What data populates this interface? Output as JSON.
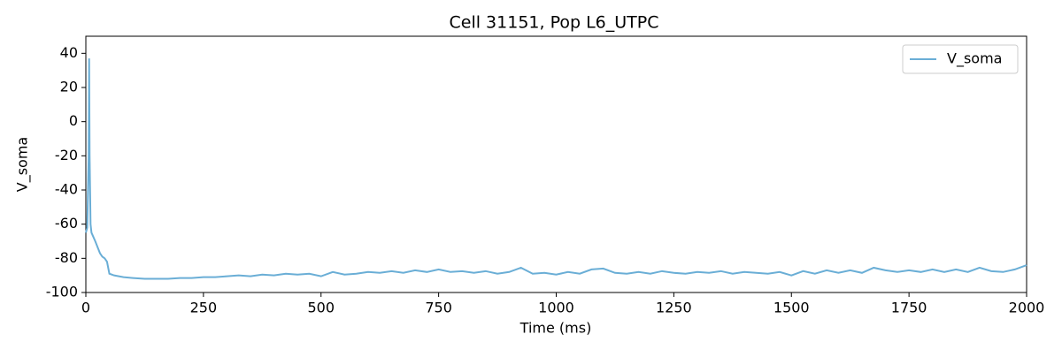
{
  "chart_data": {
    "type": "line",
    "title": "Cell 31151, Pop L6_UTPC",
    "x_label": "Time (ms)",
    "y_label": "V_soma",
    "x": [
      0,
      3,
      6,
      7,
      8,
      10,
      12,
      20,
      30,
      35,
      40,
      45,
      50,
      60,
      80,
      100,
      125,
      150,
      175,
      200,
      225,
      250,
      275,
      300,
      325,
      350,
      375,
      400,
      425,
      450,
      475,
      500,
      525,
      550,
      575,
      600,
      625,
      650,
      675,
      700,
      725,
      750,
      775,
      800,
      825,
      850,
      875,
      900,
      925,
      950,
      975,
      1000,
      1025,
      1050,
      1075,
      1100,
      1125,
      1150,
      1175,
      1200,
      1225,
      1250,
      1275,
      1300,
      1325,
      1350,
      1375,
      1400,
      1425,
      1450,
      1475,
      1500,
      1525,
      1550,
      1575,
      1600,
      1625,
      1650,
      1675,
      1700,
      1725,
      1750,
      1775,
      1800,
      1825,
      1850,
      1875,
      1900,
      1925,
      1950,
      1975,
      2000
    ],
    "series": [
      {
        "name": "V_soma",
        "color": "#6aaed6",
        "values": [
          -65,
          -62,
          -20,
          37,
          -20,
          -60,
          -65,
          -70,
          -77,
          -79,
          -80,
          -82,
          -89,
          -90,
          -91,
          -91.5,
          -92,
          -92,
          -92,
          -91.5,
          -91.5,
          -91,
          -91,
          -90.5,
          -90,
          -90.5,
          -89.5,
          -90,
          -89,
          -89.5,
          -89,
          -90.5,
          -88,
          -89.5,
          -89,
          -88,
          -88.5,
          -87.5,
          -88.5,
          -87,
          -88,
          -86.5,
          -88,
          -87.5,
          -88.5,
          -87.5,
          -89,
          -88,
          -85.5,
          -89,
          -88.5,
          -89.5,
          -88,
          -89,
          -86.5,
          -86,
          -88.5,
          -89,
          -88,
          -89,
          -87.5,
          -88.5,
          -89,
          -88,
          -88.5,
          -87.5,
          -89,
          -88,
          -88.5,
          -89,
          -88,
          -90,
          -87.5,
          -89,
          -87,
          -88.5,
          -87,
          -88.5,
          -85.5,
          -87,
          -88,
          -87,
          -88,
          -86.5,
          -88,
          -86.5,
          -88,
          -85.5,
          -87.5,
          -88,
          -86.5,
          -84
        ]
      }
    ],
    "xlim": [
      0,
      2000
    ],
    "ylim": [
      -100,
      50
    ],
    "xticks": [
      0,
      250,
      500,
      750,
      1000,
      1250,
      1500,
      1750,
      2000
    ],
    "yticks": [
      -100,
      -80,
      -60,
      -40,
      -20,
      0,
      20,
      40
    ],
    "grid": false,
    "legend": "upper right"
  }
}
